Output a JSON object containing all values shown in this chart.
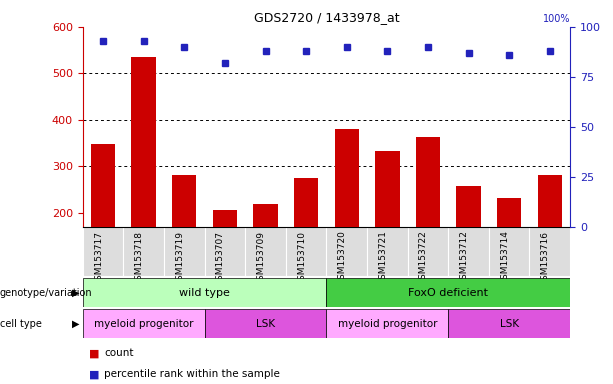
{
  "title": "GDS2720 / 1433978_at",
  "samples": [
    "GSM153717",
    "GSM153718",
    "GSM153719",
    "GSM153707",
    "GSM153709",
    "GSM153710",
    "GSM153720",
    "GSM153721",
    "GSM153722",
    "GSM153712",
    "GSM153714",
    "GSM153716"
  ],
  "counts": [
    348,
    535,
    282,
    205,
    218,
    275,
    380,
    333,
    362,
    257,
    232,
    282
  ],
  "percentiles": [
    93,
    93,
    90,
    82,
    88,
    88,
    90,
    88,
    90,
    87,
    86,
    88
  ],
  "ylim_left": [
    170,
    600
  ],
  "ylim_right": [
    0,
    100
  ],
  "yticks_left": [
    200,
    300,
    400,
    500,
    600
  ],
  "yticks_right": [
    0,
    25,
    50,
    75,
    100
  ],
  "bar_color": "#cc0000",
  "dot_color": "#2222bb",
  "bar_width": 0.6,
  "genotype_groups": [
    {
      "label": "wild type",
      "start": 0,
      "end": 6,
      "color": "#bbffbb"
    },
    {
      "label": "FoxO deficient",
      "start": 6,
      "end": 12,
      "color": "#44cc44"
    }
  ],
  "celltype_groups": [
    {
      "label": "myeloid progenitor",
      "start": 0,
      "end": 3,
      "color": "#ffaaff"
    },
    {
      "label": "LSK",
      "start": 3,
      "end": 6,
      "color": "#dd55dd"
    },
    {
      "label": "myeloid progenitor",
      "start": 6,
      "end": 9,
      "color": "#ffaaff"
    },
    {
      "label": "LSK",
      "start": 9,
      "end": 12,
      "color": "#dd55dd"
    }
  ],
  "legend_count_color": "#cc0000",
  "legend_dot_color": "#2222bb",
  "left_axis_color": "#cc0000",
  "right_axis_color": "#2222bb",
  "grid_dotted_levels": [
    300,
    400,
    500
  ],
  "xticklabel_bg": "#dddddd"
}
